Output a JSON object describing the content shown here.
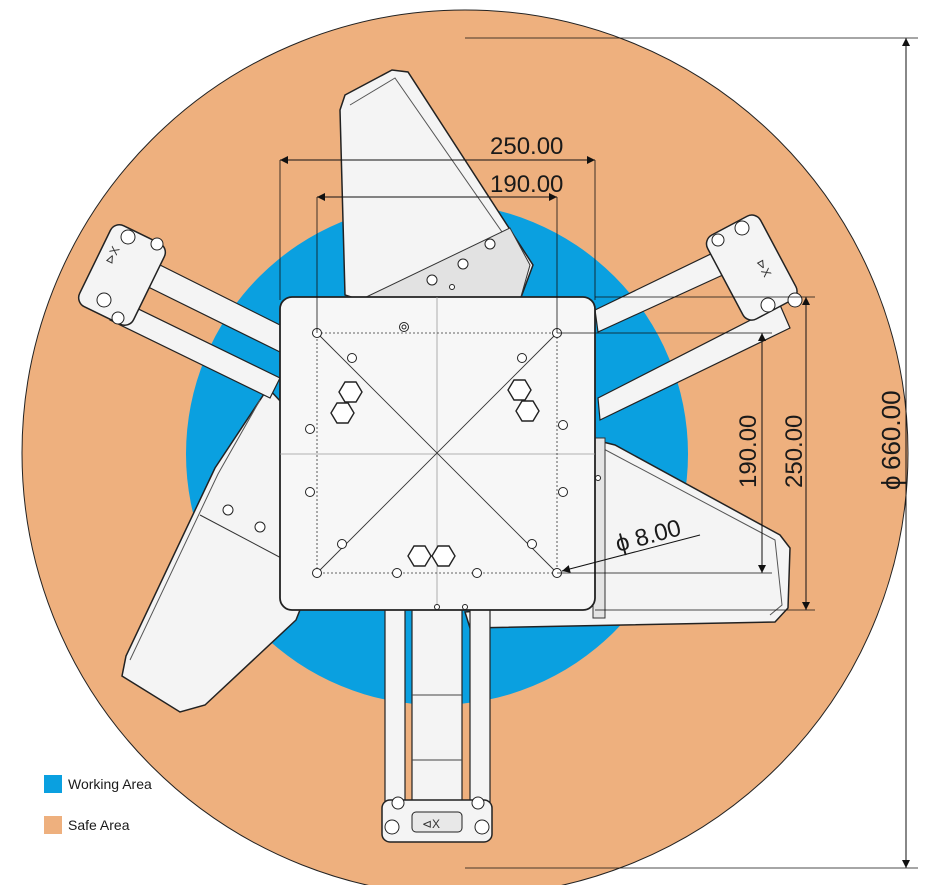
{
  "colors": {
    "safe_area": "#EEB07E",
    "working_area": "#0AA0E0",
    "part_fill": "#F4F4F4",
    "part_fill_dark": "#DADADA",
    "line": "#1A1A1A",
    "dim_line": "#111111"
  },
  "dimensions": {
    "outer_diameter": "660.00",
    "plate_outer_width": "250.00",
    "plate_inner_width": "190.00",
    "plate_inner_height": "190.00",
    "plate_outer_height": "250.00",
    "hole_diameter": "8.00"
  },
  "legend": [
    {
      "label": "Working Area",
      "color": "#0AA0E0"
    },
    {
      "label": "Safe Area",
      "color": "#EEB07E"
    }
  ]
}
